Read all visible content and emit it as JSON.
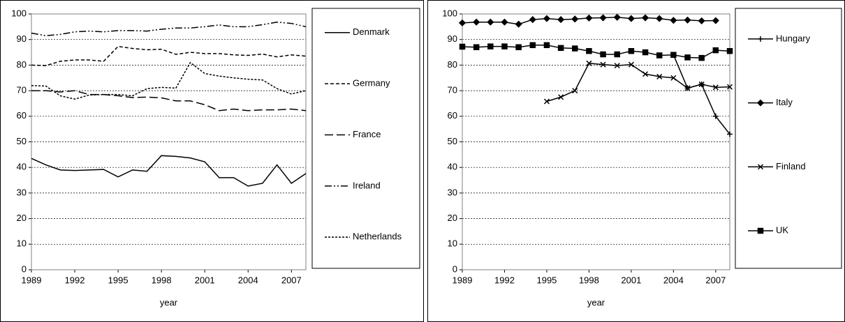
{
  "chart_data": [
    {
      "type": "line",
      "xlabel": "year",
      "x": [
        1989,
        1990,
        1991,
        1992,
        1993,
        1994,
        1995,
        1996,
        1997,
        1998,
        1999,
        2000,
        2001,
        2002,
        2003,
        2004,
        2005,
        2006,
        2007,
        2008
      ],
      "xlim": [
        1989,
        2008
      ],
      "xticks": [
        1989,
        1992,
        1995,
        1998,
        2001,
        2004,
        2007
      ],
      "ylim": [
        0,
        100
      ],
      "yticks": [
        0,
        10,
        20,
        30,
        40,
        50,
        60,
        70,
        80,
        90,
        100
      ],
      "grid": true,
      "series": [
        {
          "name": "Denmark",
          "color": "#000000",
          "dash": "none",
          "values": [
            43.5,
            41,
            39,
            38.8,
            39,
            39.2,
            36.3,
            39,
            38.5,
            44.6,
            44.3,
            43.7,
            42.2,
            36,
            36,
            32.7,
            33.8,
            41,
            33.8,
            37.6
          ]
        },
        {
          "name": "Germany",
          "color": "#000000",
          "dash": "5,3",
          "values": [
            80,
            79.8,
            81.5,
            82,
            82,
            81.5,
            87.3,
            86.5,
            86,
            86.2,
            84.2,
            85,
            84.5,
            84.5,
            84,
            83.8,
            84.3,
            83.2,
            84,
            83.5
          ]
        },
        {
          "name": "France",
          "color": "#000000",
          "dash": "12,5",
          "values": [
            70,
            70,
            69.5,
            70,
            68.5,
            68.5,
            68,
            67.3,
            67.5,
            67.2,
            66,
            66,
            64.5,
            62.2,
            62.8,
            62.2,
            62.5,
            62.5,
            62.8,
            62.2
          ]
        },
        {
          "name": "Ireland",
          "color": "#000000",
          "dash": "10,3,2,3,2,3",
          "values": [
            92.5,
            91.5,
            92,
            93,
            93.3,
            93,
            93.5,
            93.5,
            93.3,
            94,
            94.5,
            94.5,
            95,
            95.7,
            95,
            95,
            95.8,
            96.8,
            96.3,
            95
          ]
        },
        {
          "name": "Netherlands",
          "color": "#000000",
          "dash": "3,2",
          "values": [
            72,
            71.8,
            68,
            66.7,
            68.3,
            68.5,
            68.5,
            68,
            70.8,
            71.3,
            71,
            81,
            76.7,
            75.7,
            75,
            74.5,
            74.2,
            70.8,
            68.7,
            70
          ]
        }
      ]
    },
    {
      "type": "line",
      "xlabel": "year",
      "x": [
        1989,
        1990,
        1991,
        1992,
        1993,
        1994,
        1995,
        1996,
        1997,
        1998,
        1999,
        2000,
        2001,
        2002,
        2003,
        2004,
        2005,
        2006,
        2007,
        2008
      ],
      "xlim": [
        1989,
        2008
      ],
      "xticks": [
        1989,
        1992,
        1995,
        1998,
        2001,
        2004,
        2007
      ],
      "ylim": [
        0,
        100
      ],
      "yticks": [
        0,
        10,
        20,
        30,
        40,
        50,
        60,
        70,
        80,
        90,
        100
      ],
      "grid": true,
      "series": [
        {
          "name": "Hungary",
          "color": "#000000",
          "marker": "plus",
          "values": [
            null,
            null,
            null,
            null,
            null,
            null,
            null,
            null,
            null,
            null,
            null,
            null,
            null,
            null,
            null,
            84,
            71,
            72.5,
            60,
            53
          ]
        },
        {
          "name": "Italy",
          "color": "#000000",
          "marker": "diamond",
          "values": [
            96.5,
            96.8,
            96.8,
            96.8,
            96,
            97.8,
            98.2,
            97.8,
            98,
            98.4,
            98.5,
            98.7,
            98.2,
            98.5,
            98.2,
            97.5,
            97.6,
            97.3,
            97.4,
            null
          ]
        },
        {
          "name": "Finland",
          "color": "#000000",
          "marker": "cross",
          "values": [
            null,
            null,
            null,
            null,
            null,
            null,
            65.8,
            67.5,
            70,
            80.7,
            80.2,
            79.8,
            80.2,
            76.5,
            75.5,
            75,
            71,
            72.5,
            71.3,
            71.5
          ]
        },
        {
          "name": "UK",
          "color": "#000000",
          "marker": "square",
          "values": [
            87.2,
            87,
            87.3,
            87.3,
            87,
            87.8,
            87.8,
            86.7,
            86.5,
            85.5,
            84.2,
            84.2,
            85.5,
            85,
            83.8,
            84,
            83,
            82.8,
            85.8,
            85.5
          ]
        }
      ]
    }
  ]
}
